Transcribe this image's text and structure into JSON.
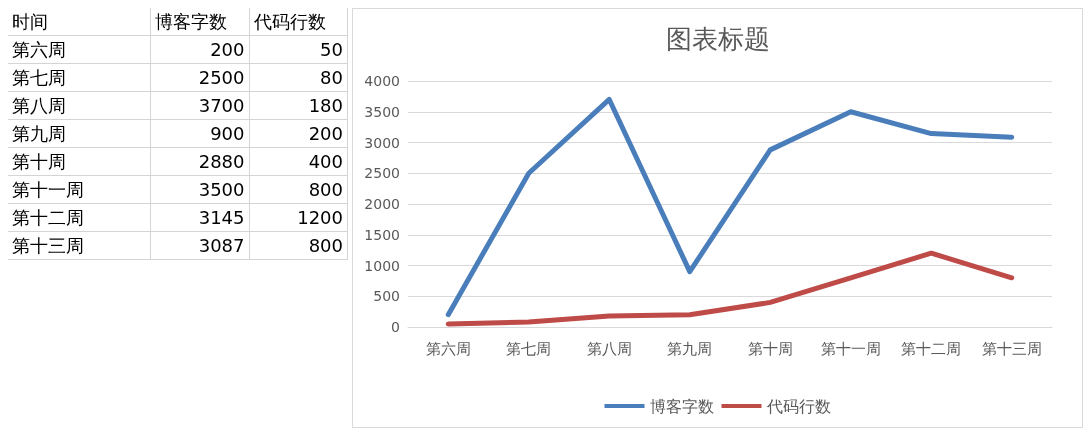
{
  "chart_data": [
    {
      "type": "other",
      "annotations": [
        "时间"
      ],
      "data_labels": true,
      "categories": [
        "第六周",
        "第七周",
        "第八周",
        "第九周",
        "第十周",
        "第十一周",
        "第十二周",
        "第十三周"
      ],
      "series": [
        {
          "name": "博客字数",
          "values": [
            200,
            2500,
            3700,
            900,
            2880,
            3500,
            3145,
            3087
          ]
        },
        {
          "name": "代码行数",
          "values": [
            50,
            80,
            180,
            200,
            400,
            800,
            1200,
            800
          ]
        }
      ]
    },
    {
      "type": "line",
      "title": "图表标题",
      "categories": [
        "第六周",
        "第七周",
        "第八周",
        "第九周",
        "第十周",
        "第十一周",
        "第十二周",
        "第十三周"
      ],
      "series": [
        {
          "name": "博客字数",
          "color": "#4a7ebb",
          "values": [
            200,
            2500,
            3700,
            900,
            2880,
            3500,
            3145,
            3087
          ]
        },
        {
          "name": "代码行数",
          "color": "#be4b48",
          "values": [
            50,
            80,
            180,
            200,
            400,
            800,
            1200,
            800
          ]
        }
      ],
      "ylim": [
        0,
        4000
      ],
      "yticks": [
        0,
        500,
        1000,
        1500,
        2000,
        2500,
        3000,
        3500,
        4000
      ],
      "grid": "y",
      "legend": "bottom",
      "marker": "none",
      "line_style": "solid"
    }
  ]
}
